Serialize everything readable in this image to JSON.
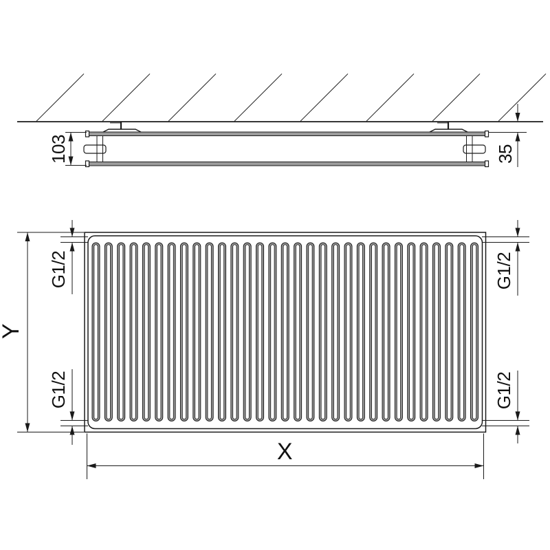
{
  "diagram": {
    "kind": "panel-radiator-dimension-drawing",
    "background": "#ffffff",
    "line_color": "#1a1a1a",
    "panel_fill": "#9b9b9b",
    "side_view": {
      "depth_dim": "103",
      "wall_distance_dim": "35"
    },
    "front_view": {
      "height_dim": "Y",
      "width_dim": "X",
      "thread_top_left": "G1/2",
      "thread_bottom_left": "G1/2",
      "thread_top_right": "G1/2",
      "thread_bottom_right": "G1/2",
      "channel_count": 31
    }
  }
}
